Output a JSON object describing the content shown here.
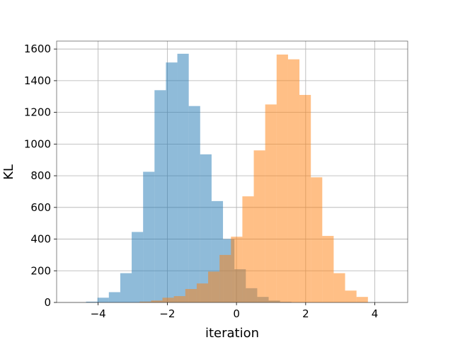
{
  "chart_data": {
    "type": "histogram",
    "title": "",
    "xlabel": "iteration",
    "ylabel": "KL",
    "xlim": [
      -5.2,
      4.95
    ],
    "ylim": [
      0,
      1650
    ],
    "xticks": [
      -4,
      -2,
      0,
      2,
      4
    ],
    "yticks": [
      0,
      200,
      400,
      600,
      800,
      1000,
      1200,
      1400,
      1600
    ],
    "xtick_labels": [
      "−4",
      "−2",
      "0",
      "2",
      "4"
    ],
    "ytick_labels": [
      "0",
      "200",
      "400",
      "600",
      "800",
      "1000",
      "1200",
      "1400",
      "1600"
    ],
    "grid": true,
    "legend": false,
    "series": [
      {
        "color": "#1f77b4",
        "opacity": 0.5,
        "bins": [
          {
            "x0": -4.35,
            "x1": -4.02,
            "count": 5
          },
          {
            "x0": -4.02,
            "x1": -3.69,
            "count": 30
          },
          {
            "x0": -3.69,
            "x1": -3.36,
            "count": 65
          },
          {
            "x0": -3.36,
            "x1": -3.03,
            "count": 185
          },
          {
            "x0": -3.03,
            "x1": -2.7,
            "count": 445
          },
          {
            "x0": -2.7,
            "x1": -2.37,
            "count": 825
          },
          {
            "x0": -2.37,
            "x1": -2.04,
            "count": 1340
          },
          {
            "x0": -2.04,
            "x1": -1.71,
            "count": 1515
          },
          {
            "x0": -1.71,
            "x1": -1.38,
            "count": 1570
          },
          {
            "x0": -1.38,
            "x1": -1.05,
            "count": 1240
          },
          {
            "x0": -1.05,
            "x1": -0.72,
            "count": 935
          },
          {
            "x0": -0.72,
            "x1": -0.39,
            "count": 640
          },
          {
            "x0": -0.39,
            "x1": -0.06,
            "count": 400
          },
          {
            "x0": -0.06,
            "x1": 0.27,
            "count": 210
          },
          {
            "x0": 0.27,
            "x1": 0.6,
            "count": 90
          },
          {
            "x0": 0.6,
            "x1": 0.93,
            "count": 35
          },
          {
            "x0": 0.93,
            "x1": 1.26,
            "count": 12
          },
          {
            "x0": 1.26,
            "x1": 1.59,
            "count": 4
          }
        ]
      },
      {
        "color": "#ff7f0e",
        "opacity": 0.5,
        "bins": [
          {
            "x0": -2.8,
            "x1": -2.47,
            "count": 5
          },
          {
            "x0": -2.47,
            "x1": -2.14,
            "count": 12
          },
          {
            "x0": -2.14,
            "x1": -1.81,
            "count": 30
          },
          {
            "x0": -1.81,
            "x1": -1.48,
            "count": 40
          },
          {
            "x0": -1.48,
            "x1": -1.15,
            "count": 85
          },
          {
            "x0": -1.15,
            "x1": -0.82,
            "count": 120
          },
          {
            "x0": -0.82,
            "x1": -0.49,
            "count": 195
          },
          {
            "x0": -0.49,
            "x1": -0.16,
            "count": 300
          },
          {
            "x0": -0.16,
            "x1": 0.17,
            "count": 415
          },
          {
            "x0": 0.17,
            "x1": 0.5,
            "count": 670
          },
          {
            "x0": 0.5,
            "x1": 0.83,
            "count": 960
          },
          {
            "x0": 0.83,
            "x1": 1.16,
            "count": 1250
          },
          {
            "x0": 1.16,
            "x1": 1.49,
            "count": 1565
          },
          {
            "x0": 1.49,
            "x1": 1.82,
            "count": 1535
          },
          {
            "x0": 1.82,
            "x1": 2.15,
            "count": 1310
          },
          {
            "x0": 2.15,
            "x1": 2.48,
            "count": 790
          },
          {
            "x0": 2.48,
            "x1": 2.81,
            "count": 420
          },
          {
            "x0": 2.81,
            "x1": 3.14,
            "count": 185
          },
          {
            "x0": 3.14,
            "x1": 3.47,
            "count": 75
          },
          {
            "x0": 3.47,
            "x1": 3.8,
            "count": 35
          }
        ]
      }
    ]
  }
}
